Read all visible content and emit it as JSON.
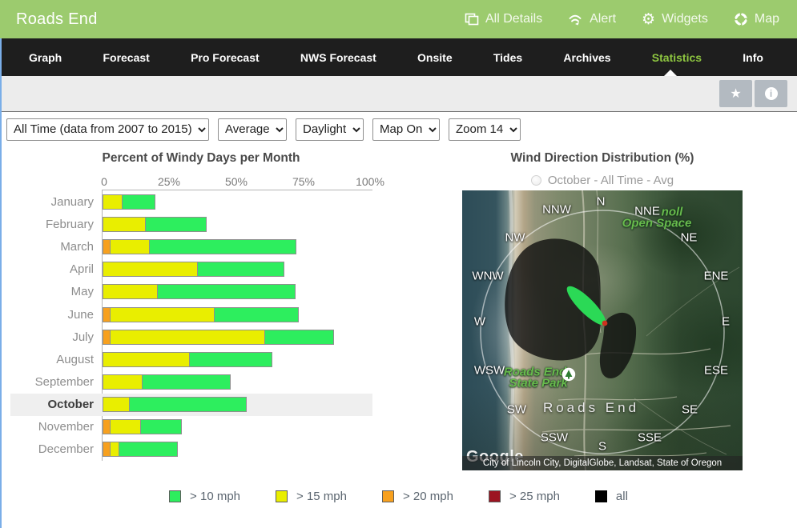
{
  "header": {
    "title": "Roads End",
    "menu": [
      {
        "label": "All Details",
        "icon": "all-details-icon"
      },
      {
        "label": "Alert",
        "icon": "alert-icon"
      },
      {
        "label": "Widgets",
        "icon": "widgets-icon"
      },
      {
        "label": "Map",
        "icon": "map-icon"
      }
    ]
  },
  "nav": {
    "tabs": [
      "Graph",
      "Forecast",
      "Pro Forecast",
      "NWS Forecast",
      "Onsite",
      "Tides",
      "Archives",
      "Statistics",
      "Info"
    ],
    "active_tab": "Statistics"
  },
  "toolbar": {
    "buttons": [
      {
        "name": "favorite",
        "icon": "star-icon"
      },
      {
        "name": "info",
        "icon": "info-icon"
      }
    ]
  },
  "filters": [
    {
      "name": "time-range",
      "value": "All Time (data from 2007 to 2015)"
    },
    {
      "name": "aggregation",
      "value": "Average"
    },
    {
      "name": "daypart",
      "value": "Daylight"
    },
    {
      "name": "map-toggle",
      "value": "Map On"
    },
    {
      "name": "map-zoom",
      "value": "Zoom 14"
    }
  ],
  "chart_data": {
    "type": "bar",
    "orientation": "horizontal",
    "title": "Percent of Windy Days per Month",
    "x_ticks": [
      "0",
      "25%",
      "50%",
      "75%",
      "100%"
    ],
    "xlim": [
      0,
      100
    ],
    "highlighted_category": "October",
    "categories": [
      "January",
      "February",
      "March",
      "April",
      "May",
      "June",
      "July",
      "August",
      "September",
      "October",
      "November",
      "December"
    ],
    "series": [
      {
        "name": "> 20 mph",
        "color": "#f7a01e",
        "values": [
          0,
          0,
          3,
          0,
          0,
          3,
          3,
          0,
          0,
          0,
          3,
          3
        ]
      },
      {
        "name": "> 15 mph",
        "color": "#e9ee00",
        "values": [
          7.5,
          16,
          18,
          35.5,
          20.5,
          42,
          61,
          32.5,
          15,
          10,
          14.5,
          6.5
        ]
      },
      {
        "name": "> 10 mph",
        "color": "#2dee5e",
        "values": [
          20,
          39,
          73,
          68,
          72,
          73.5,
          87,
          63.5,
          48,
          54,
          30,
          28.5
        ]
      }
    ]
  },
  "wind_map": {
    "title": "Wind Direction Distribution (%)",
    "radio_label": "October - All Time - Avg",
    "radio_selected": false,
    "compass_labels": [
      "N",
      "NNE",
      "NE",
      "ENE",
      "E",
      "ESE",
      "SE",
      "SSE",
      "S",
      "SSW",
      "SW",
      "WSW",
      "W",
      "WNW",
      "NW",
      "NNW"
    ],
    "map_place_labels": {
      "open_space_line1": "noll",
      "open_space_line2": "Open Space",
      "park_line1": "Roads End",
      "park_line2": "State Park",
      "town": "Roads End"
    },
    "logo": "Google",
    "attribution": "City of Lincoln City, DigitalGlobe, Landsat, State of Oregon"
  },
  "legend": {
    "items": [
      {
        "label": "> 10 mph",
        "color": "#2dee5e"
      },
      {
        "label": "> 15 mph",
        "color": "#e9ee00"
      },
      {
        "label": "> 20 mph",
        "color": "#f7a01e"
      },
      {
        "label": "> 25 mph",
        "color": "#9c1421"
      },
      {
        "label": "all",
        "color": "#000000"
      }
    ]
  }
}
